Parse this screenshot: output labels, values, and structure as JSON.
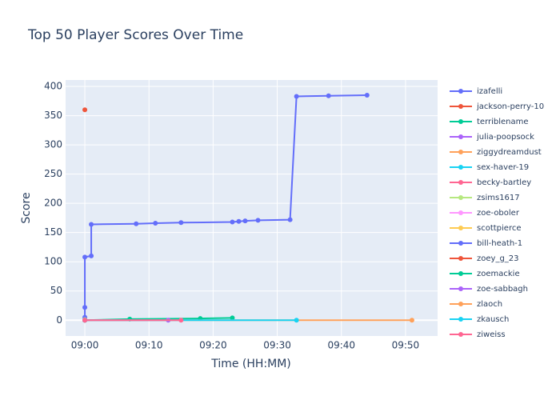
{
  "chart_data": {
    "type": "line",
    "title": "Top 50 Player Scores Over Time",
    "x_label": "Time (HH:MM)",
    "y_label": "Score",
    "xlim": [
      "08:57",
      "09:55"
    ],
    "xticks": [
      "09:00",
      "09:10",
      "09:20",
      "09:30",
      "09:40",
      "09:50"
    ],
    "ylim": [
      -27,
      411
    ],
    "yticks": [
      0,
      50,
      100,
      150,
      200,
      250,
      300,
      350,
      400
    ],
    "grid": true,
    "series": [
      {
        "name": "izafelli",
        "color": "#636efa",
        "x": [
          "09:00",
          "09:00",
          "09:00",
          "09:00",
          "09:01",
          "09:01",
          "09:08",
          "09:11",
          "09:15",
          "09:23",
          "09:24",
          "09:25",
          "09:27",
          "09:32",
          "09:33",
          "09:38",
          "09:44"
        ],
        "values": [
          0,
          5,
          22,
          108,
          110,
          164,
          165,
          166,
          167,
          168,
          169,
          170,
          171,
          172,
          383,
          384,
          385
        ]
      },
      {
        "name": "jackson-perry-10",
        "color": "#EF553B",
        "x": [
          "09:00"
        ],
        "values": [
          360
        ]
      },
      {
        "name": "terriblename",
        "color": "#00cc96",
        "x": [
          "09:00",
          "09:07",
          "09:18",
          "09:23"
        ],
        "values": [
          0,
          2,
          3,
          4
        ]
      },
      {
        "name": "julia-poopsock",
        "color": "#ab63fa",
        "x": [
          "09:00",
          "09:13"
        ],
        "values": [
          0,
          0
        ]
      },
      {
        "name": "ziggydreamdust",
        "color": "#FFA15A",
        "x": [
          "09:00",
          "09:51"
        ],
        "values": [
          0,
          0
        ]
      },
      {
        "name": "sex-haver-19",
        "color": "#19d3f3",
        "x": [
          "09:00",
          "09:33"
        ],
        "values": [
          0,
          0
        ]
      },
      {
        "name": "becky-bartley",
        "color": "#FF6692",
        "x": [
          "09:00",
          "09:15"
        ],
        "values": [
          0,
          0
        ]
      },
      {
        "name": "zsims1617",
        "color": "#B6E880",
        "x": [
          "09:00"
        ],
        "values": [
          1
        ]
      },
      {
        "name": "zoe-oboler",
        "color": "#FF97FF",
        "x": [
          "09:00"
        ],
        "values": [
          0
        ]
      },
      {
        "name": "scottpierce",
        "color": "#FECB52",
        "x": [
          "09:00"
        ],
        "values": [
          0
        ]
      },
      {
        "name": "bill-heath-1",
        "color": "#636efa",
        "x": [
          "09:00"
        ],
        "values": [
          0
        ]
      },
      {
        "name": "zoey_g_23",
        "color": "#EF553B",
        "x": [
          "09:00"
        ],
        "values": [
          0
        ]
      },
      {
        "name": "zoemackie",
        "color": "#00cc96",
        "x": [
          "09:00"
        ],
        "values": [
          0
        ]
      },
      {
        "name": "zoe-sabbagh",
        "color": "#ab63fa",
        "x": [
          "09:00"
        ],
        "values": [
          0
        ]
      },
      {
        "name": "zlaoch",
        "color": "#FFA15A",
        "x": [
          "09:00"
        ],
        "values": [
          0
        ]
      },
      {
        "name": "zkausch",
        "color": "#19d3f3",
        "x": [
          "09:00"
        ],
        "values": [
          0
        ]
      },
      {
        "name": "ziweiss",
        "color": "#FF6692",
        "x": [
          "09:00"
        ],
        "values": [
          0
        ]
      }
    ]
  }
}
